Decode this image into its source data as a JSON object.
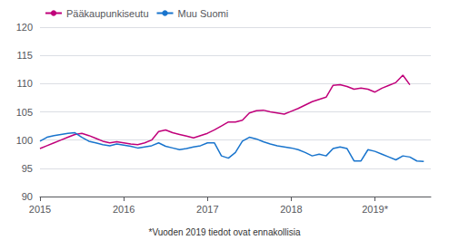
{
  "chart_data": {
    "type": "line",
    "x": [
      2015,
      2015.0833333333,
      2015.1666666667,
      2015.25,
      2015.3333333333,
      2015.4166666667,
      2015.5,
      2015.5833333333,
      2015.6666666667,
      2015.75,
      2015.8333333333,
      2015.9166666667,
      2016,
      2016.0833333333,
      2016.1666666667,
      2016.25,
      2016.3333333333,
      2016.4166666667,
      2016.5,
      2016.5833333333,
      2016.6666666667,
      2016.75,
      2016.8333333333,
      2016.9166666667,
      2017,
      2017.0833333333,
      2017.1666666667,
      2017.25,
      2017.3333333333,
      2017.4166666667,
      2017.5,
      2017.5833333333,
      2017.6666666667,
      2017.75,
      2017.8333333333,
      2017.9166666667,
      2018,
      2018.0833333333,
      2018.1666666667,
      2018.25,
      2018.3333333333,
      2018.4166666667,
      2018.5,
      2018.5833333333,
      2018.6666666667,
      2018.75,
      2018.8333333333,
      2018.9166666667,
      2019,
      2019.0833333333,
      2019.1666666667,
      2019.25,
      2019.3333333333,
      2019.4166666667,
      2019.5,
      2019.5833333333
    ],
    "series": [
      {
        "name": "Pääkaupunkiseutu",
        "color": "#c0007a",
        "values": [
          98.5,
          99.0,
          99.5,
          100.0,
          100.5,
          101.0,
          101.2,
          100.8,
          100.3,
          99.8,
          99.5,
          99.7,
          99.5,
          99.3,
          99.2,
          99.5,
          100.0,
          101.5,
          101.8,
          101.3,
          101.0,
          100.7,
          100.4,
          100.8,
          101.2,
          101.8,
          102.5,
          103.2,
          103.2,
          103.5,
          104.8,
          105.2,
          105.3,
          105.0,
          104.8,
          104.6,
          105.1,
          105.6,
          106.2,
          106.8,
          107.2,
          107.6,
          109.7,
          109.8,
          109.5,
          109.0,
          109.2,
          109.0,
          108.5,
          109.2,
          109.7,
          110.2,
          111.5,
          109.8,
          null,
          null
        ]
      },
      {
        "name": "Muu Suomi",
        "color": "#1874cd",
        "values": [
          99.8,
          100.5,
          100.8,
          101.0,
          101.2,
          101.3,
          100.5,
          99.8,
          99.5,
          99.2,
          99.0,
          99.3,
          99.1,
          98.9,
          98.6,
          98.8,
          99.0,
          99.5,
          98.9,
          98.6,
          98.3,
          98.5,
          98.8,
          99.0,
          99.5,
          99.5,
          97.2,
          96.8,
          97.8,
          99.8,
          100.5,
          100.2,
          99.7,
          99.3,
          99.0,
          98.8,
          98.6,
          98.3,
          97.8,
          97.2,
          97.5,
          97.2,
          98.5,
          98.8,
          98.5,
          96.3,
          96.3,
          98.3,
          98.0,
          97.5,
          97.0,
          96.5,
          97.2,
          97.0,
          96.3,
          96.2
        ]
      }
    ],
    "xlim": [
      2015.0,
      2019.667
    ],
    "xticks": [
      2015,
      2016,
      2017,
      2018,
      {
        "value": 2019,
        "label": "2019*"
      }
    ],
    "ylim": [
      90,
      120
    ],
    "yticks": [
      90,
      95,
      100,
      105,
      110,
      115,
      120
    ],
    "grid": true,
    "legend": "upper left",
    "annotations": [
      "*Vuoden 2019 tiedot ovat ennakollisia"
    ]
  }
}
